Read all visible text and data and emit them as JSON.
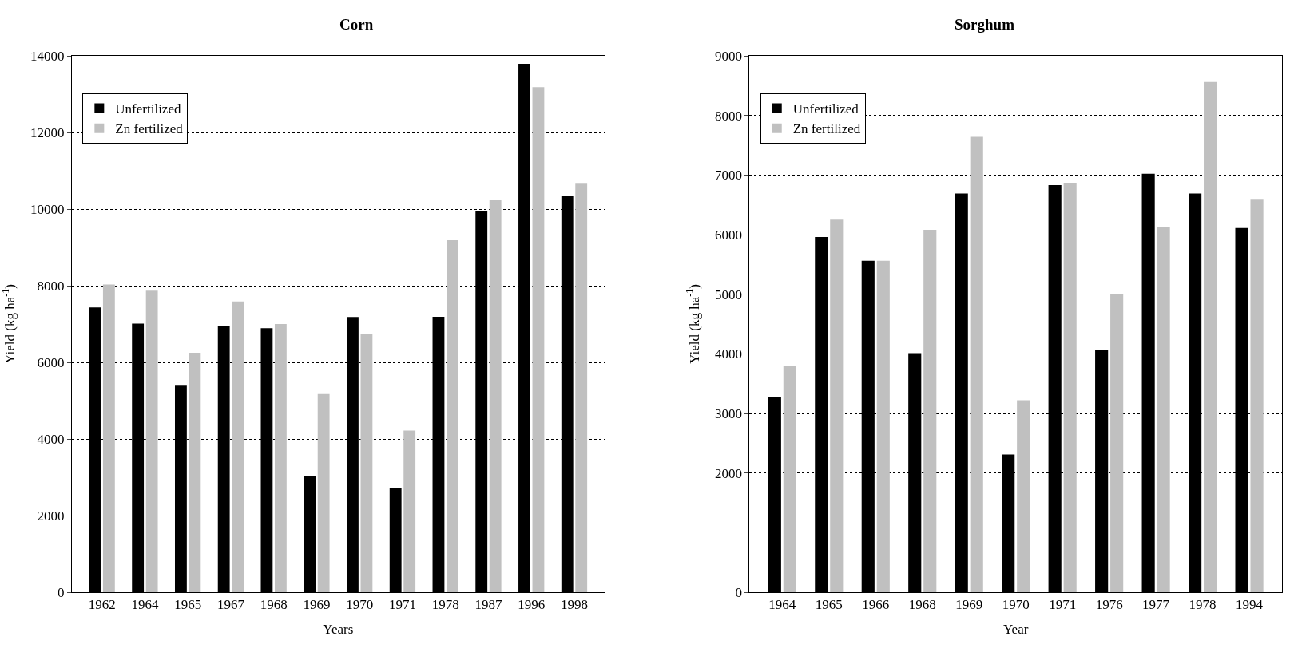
{
  "chart_data": [
    {
      "type": "bar",
      "title": "Corn",
      "xlabel": "Years",
      "ylabel": "Yield (kg ha$^{-1}$)",
      "categories": [
        "1962",
        "1964",
        "1965",
        "1967",
        "1968",
        "1969",
        "1970",
        "1971",
        "1978",
        "1987",
        "1996",
        "1998"
      ],
      "series": [
        {
          "name": "Unfertilized",
          "color": "#000000",
          "values": [
            7430,
            7010,
            5390,
            6960,
            6890,
            3020,
            7180,
            2730,
            7190,
            9950,
            13790,
            10340
          ]
        },
        {
          "name": "Zn fertilized",
          "color": "#c0c0c0",
          "values": [
            8030,
            7870,
            6250,
            7590,
            7000,
            5170,
            6750,
            4220,
            9190,
            10240,
            13180,
            10680
          ]
        }
      ],
      "ylim": [
        0,
        14000
      ],
      "yticks": [
        0,
        2000,
        4000,
        6000,
        8000,
        10000,
        12000,
        14000
      ],
      "grid": "y",
      "legend": "top left"
    },
    {
      "type": "bar",
      "title": "Sorghum",
      "xlabel": "Year",
      "ylabel": "Yield (kg ha$^{-1}$)",
      "categories": [
        "1964",
        "1965",
        "1966",
        "1968",
        "1969",
        "1970",
        "1971",
        "1976",
        "1977",
        "1978",
        "1994"
      ],
      "series": [
        {
          "name": "Unfertilized",
          "color": "#000000",
          "values": [
            3280,
            5960,
            5560,
            4010,
            6690,
            2310,
            6830,
            4070,
            7020,
            6690,
            6110
          ]
        },
        {
          "name": "Zn fertilized",
          "color": "#c0c0c0",
          "values": [
            3790,
            6250,
            5560,
            6080,
            7640,
            3220,
            6870,
            5010,
            6120,
            8560,
            6600
          ]
        }
      ],
      "ylim": [
        0,
        9000
      ],
      "yticks": [
        0,
        2000,
        3000,
        4000,
        5000,
        6000,
        7000,
        8000,
        9000
      ],
      "grid": "y",
      "legend": "top left"
    }
  ]
}
